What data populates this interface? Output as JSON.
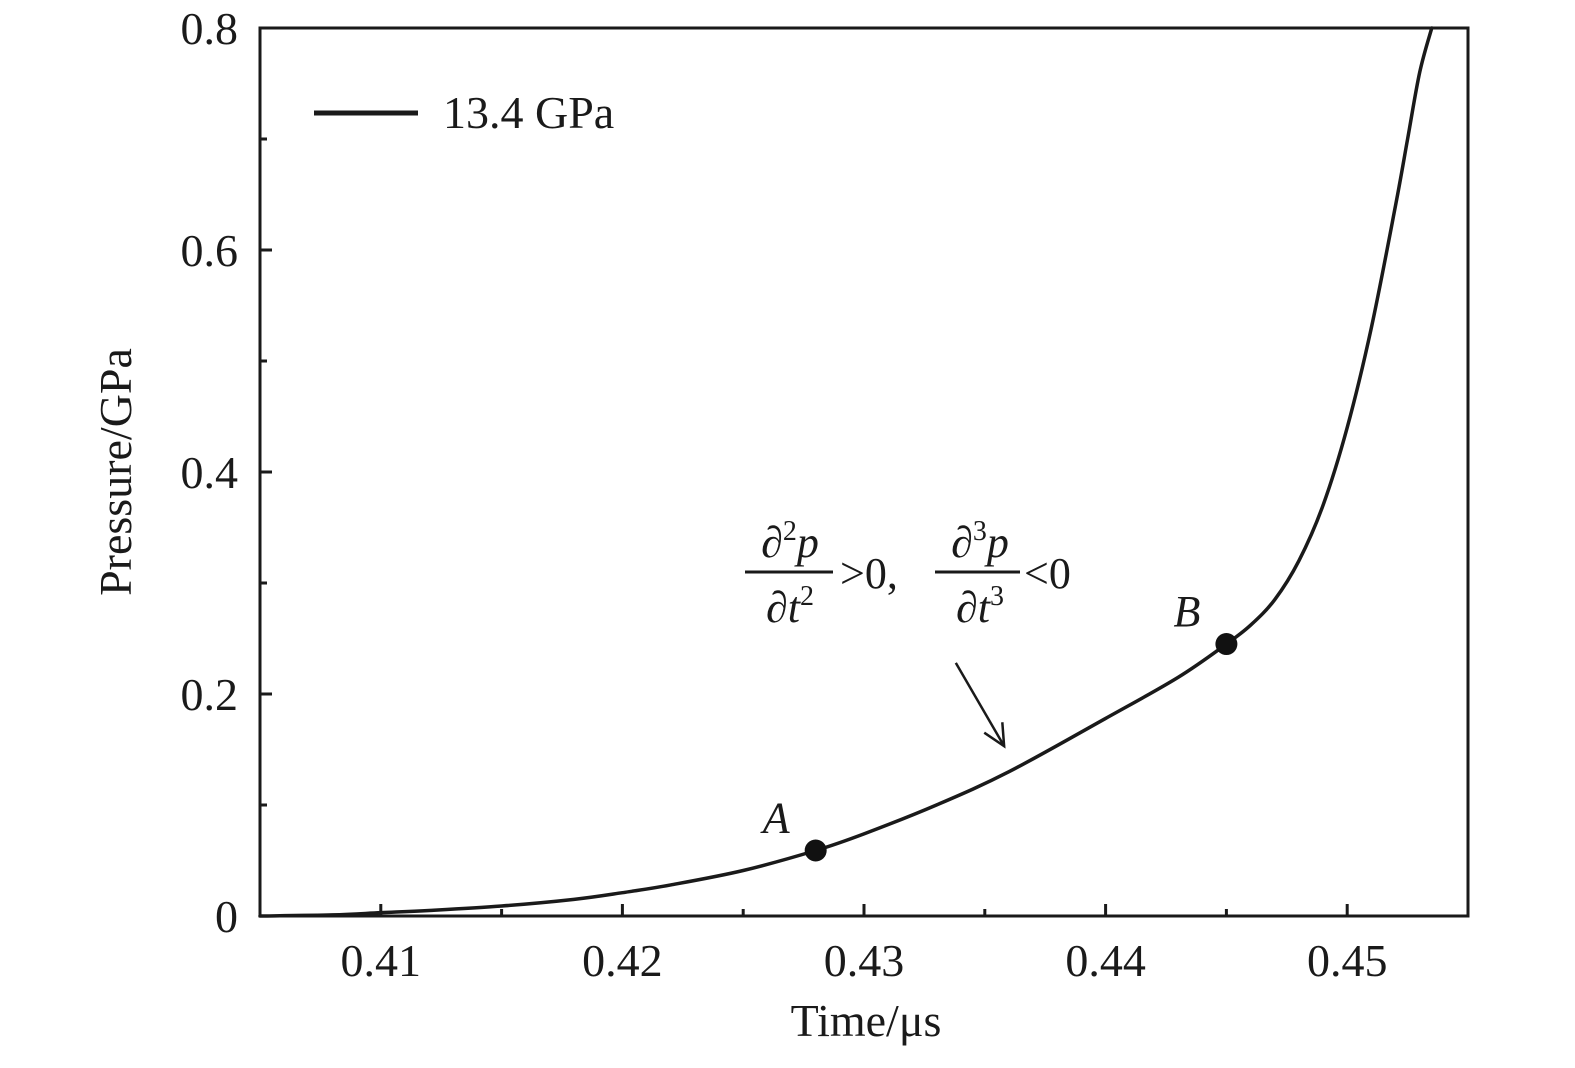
{
  "chart_data": {
    "type": "line",
    "title": "",
    "xlabel": "Time/μs",
    "ylabel": "Pressure/GPa",
    "xlim": [
      0.405,
      0.455
    ],
    "ylim": [
      0,
      0.8
    ],
    "x_ticks": [
      0.41,
      0.42,
      0.43,
      0.44,
      0.45
    ],
    "x_tick_labels": [
      "0.41",
      "0.42",
      "0.43",
      "0.44",
      "0.45"
    ],
    "x_minor_ticks": [
      0.415,
      0.425,
      0.435,
      0.445
    ],
    "y_ticks": [
      0,
      0.2,
      0.4,
      0.6,
      0.8
    ],
    "y_tick_labels": [
      "0",
      "0.2",
      "0.4",
      "0.6",
      "0.8"
    ],
    "y_minor_ticks": [
      0.1,
      0.3,
      0.5,
      0.7
    ],
    "grid": false,
    "legend_position": "top-left",
    "series": [
      {
        "name": "13.4 GPa",
        "color": "#1a1a1a",
        "x": [
          0.405,
          0.408,
          0.41,
          0.412,
          0.415,
          0.418,
          0.42,
          0.422,
          0.425,
          0.428,
          0.43,
          0.433,
          0.436,
          0.44,
          0.443,
          0.445,
          0.446,
          0.447,
          0.448,
          0.449,
          0.45,
          0.451,
          0.452,
          0.4525,
          0.453,
          0.4535
        ],
        "y": [
          0.0,
          0.001,
          0.003,
          0.005,
          0.009,
          0.015,
          0.021,
          0.028,
          0.041,
          0.059,
          0.074,
          0.1,
          0.13,
          0.178,
          0.215,
          0.245,
          0.262,
          0.285,
          0.32,
          0.37,
          0.44,
          0.53,
          0.64,
          0.7,
          0.76,
          0.8
        ]
      }
    ],
    "points": [
      {
        "label": "A",
        "x": 0.428,
        "y": 0.059
      },
      {
        "label": "B",
        "x": 0.445,
        "y": 0.245
      }
    ],
    "annotation": {
      "partial": "∂",
      "exp2": "2",
      "exp3": "3",
      "p": "p",
      "t": "t",
      "rel1": ">0,",
      "rel2": "<0",
      "arrow_tail": {
        "x": 0.4338,
        "y": 0.228
      },
      "arrow_head": {
        "x": 0.4358,
        "y": 0.153
      }
    }
  }
}
